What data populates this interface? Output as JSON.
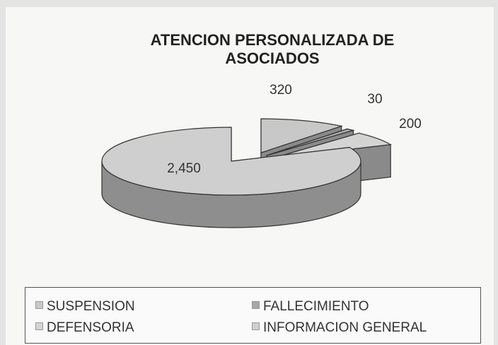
{
  "chart_data": {
    "type": "pie3d",
    "title": "ATENCION PERSONALIZADA DE ASOCIADOS",
    "categories": [
      "SUSPENSION",
      "FALLECIMIENTO",
      "DEFENSORIA",
      "INFORMACION GENERAL"
    ],
    "values": [
      320,
      30,
      200,
      2450
    ],
    "value_labels": [
      "320",
      "30",
      "200",
      "2,450"
    ],
    "colors": [
      "#c8c8c8",
      "#a8a8a8",
      "#d4d4d4",
      "#cfcfcf"
    ],
    "legend": "bottom"
  }
}
